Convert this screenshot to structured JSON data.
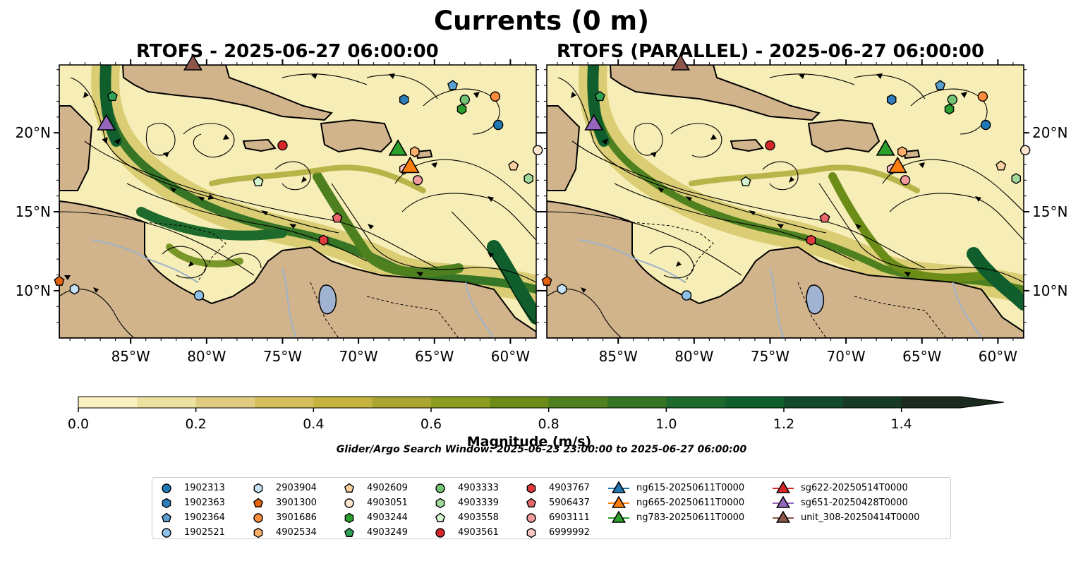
{
  "suptitle": "Currents (0 m)",
  "panels": [
    {
      "title": "RTOFS - 2025-06-27 06:00:00"
    },
    {
      "title": "RTOFS (PARALLEL) - 2025-06-27 06:00:00"
    }
  ],
  "axes": {
    "lon_ticks": [
      "85°W",
      "80°W",
      "75°W",
      "70°W",
      "65°W",
      "60°W"
    ],
    "lon_values": [
      -85,
      -80,
      -75,
      -70,
      -65,
      -60
    ],
    "lat_ticks": [
      "20°N",
      "15°N",
      "10°N"
    ],
    "lat_values": [
      20,
      15,
      10
    ],
    "lon_range": [
      -89.7,
      -58.3
    ],
    "lat_range": [
      7,
      24.3
    ]
  },
  "colorbar": {
    "label": "Magnitude (m/s)",
    "ticks": [
      "0.0",
      "0.2",
      "0.4",
      "0.6",
      "0.8",
      "1.0",
      "1.2",
      "1.4"
    ],
    "tick_values": [
      0,
      0.2,
      0.4,
      0.6,
      0.8,
      1.0,
      1.2,
      1.4
    ],
    "range": [
      0,
      1.5
    ],
    "extend": "max",
    "colors": [
      "#f9f2c0",
      "#ece1a0",
      "#e0cc80",
      "#d4bf5c",
      "#c4b33e",
      "#a9a530",
      "#8c9c1e",
      "#6c8c18",
      "#4f8020",
      "#367426",
      "#1e6a2c",
      "#0f5e2c",
      "#124a2c",
      "#173a26",
      "#1a2a1e"
    ]
  },
  "search_window": "Glider/Argo Search Window: 2025-06-23 23:00:00 to 2025-06-27 06:00:00",
  "colors": {
    "land": "#d2b48c",
    "water_bodies": "#a0b4d2",
    "rivers": "#9fb3c8"
  },
  "legend": [
    {
      "label": "1902313",
      "marker": "circle",
      "color": "#1f77b4"
    },
    {
      "label": "1902363",
      "marker": "hexagon",
      "color": "#2e7ebc"
    },
    {
      "label": "1902364",
      "marker": "pentagon",
      "color": "#5b9fd1"
    },
    {
      "label": "1902521",
      "marker": "circle",
      "color": "#8ec1e6"
    },
    {
      "label": "2903904",
      "marker": "hexagon",
      "color": "#c6e2f7"
    },
    {
      "label": "3901300",
      "marker": "pentagon",
      "color": "#e6640e"
    },
    {
      "label": "3901686",
      "marker": "circle",
      "color": "#fd8d3c"
    },
    {
      "label": "4902534",
      "marker": "hexagon",
      "color": "#fdae6b"
    },
    {
      "label": "4902609",
      "marker": "pentagon",
      "color": "#fdd0a2"
    },
    {
      "label": "4903051",
      "marker": "circle",
      "color": "#fee6ce"
    },
    {
      "label": "4903244",
      "marker": "hexagon",
      "color": "#2ca02c"
    },
    {
      "label": "4903249",
      "marker": "pentagon",
      "color": "#31a354"
    },
    {
      "label": "4903333",
      "marker": "circle",
      "color": "#74c476"
    },
    {
      "label": "4903339",
      "marker": "hexagon",
      "color": "#a1d99b"
    },
    {
      "label": "4903558",
      "marker": "pentagon",
      "color": "#d5f5d0"
    },
    {
      "label": "4903561",
      "marker": "circle",
      "color": "#d62728"
    },
    {
      "label": "4903767",
      "marker": "hexagon",
      "color": "#e03a3e"
    },
    {
      "label": "5906437",
      "marker": "pentagon",
      "color": "#e8676b"
    },
    {
      "label": "6903111",
      "marker": "circle",
      "color": "#f29b9e"
    },
    {
      "label": "6999992",
      "marker": "hexagon",
      "color": "#fbc4c6"
    },
    {
      "label": "ng615-20250611T0000",
      "marker": "triangle",
      "color": "#1f77b4"
    },
    {
      "label": "ng665-20250611T0000",
      "marker": "triangle",
      "color": "#ff7f0e"
    },
    {
      "label": "ng783-20250611T0000",
      "marker": "triangle",
      "color": "#2ca02c"
    },
    {
      "label": "sg622-20250514T0000",
      "marker": "triangle",
      "color": "#d62728"
    },
    {
      "label": "sg651-20250428T0000",
      "marker": "triangle",
      "color": "#9467bd"
    },
    {
      "label": "unit_308-20250414T0000",
      "marker": "triangle",
      "color": "#8c564b"
    }
  ],
  "floats": [
    {
      "id": "1902313",
      "lon": -60.8,
      "lat": 20.5
    },
    {
      "id": "1902363",
      "lon": -67.0,
      "lat": 22.1
    },
    {
      "id": "1902364",
      "lon": -63.8,
      "lat": 23.0
    },
    {
      "id": "1902521",
      "lon": -80.5,
      "lat": 9.7
    },
    {
      "id": "2903904",
      "lon": -88.7,
      "lat": 10.1
    },
    {
      "id": "3901300",
      "lon": -89.7,
      "lat": 10.6
    },
    {
      "id": "3901686",
      "lon": -61.0,
      "lat": 22.3
    },
    {
      "id": "4902534",
      "lon": -66.3,
      "lat": 18.8
    },
    {
      "id": "4902609",
      "lon": -59.8,
      "lat": 17.9
    },
    {
      "id": "4903051",
      "lon": -58.2,
      "lat": 18.9
    },
    {
      "id": "4903244",
      "lon": -63.2,
      "lat": 21.5
    },
    {
      "id": "4903249",
      "lon": -86.2,
      "lat": 22.3
    },
    {
      "id": "4903333",
      "lon": -63.0,
      "lat": 22.1
    },
    {
      "id": "4903339",
      "lon": -58.8,
      "lat": 17.1
    },
    {
      "id": "4903558",
      "lon": -76.6,
      "lat": 16.9
    },
    {
      "id": "4903561",
      "lon": -75.0,
      "lat": 19.2
    },
    {
      "id": "4903767",
      "lon": -72.3,
      "lat": 13.2
    },
    {
      "id": "5906437",
      "lon": -71.4,
      "lat": 14.6
    },
    {
      "id": "6903111",
      "lon": -66.1,
      "lat": 17.0
    },
    {
      "id": "6999992",
      "lon": -67.0,
      "lat": 17.7
    }
  ],
  "gliders": [
    {
      "id": "ng665-20250611T0000",
      "lon": -66.6,
      "lat": 17.8
    },
    {
      "id": "ng783-20250611T0000",
      "lon": -67.4,
      "lat": 18.9
    },
    {
      "id": "sg651-20250428T0000",
      "lon": -86.6,
      "lat": 20.5
    },
    {
      "id": "unit_308-20250414T0000",
      "lon": -80.9,
      "lat": 24.3
    }
  ]
}
